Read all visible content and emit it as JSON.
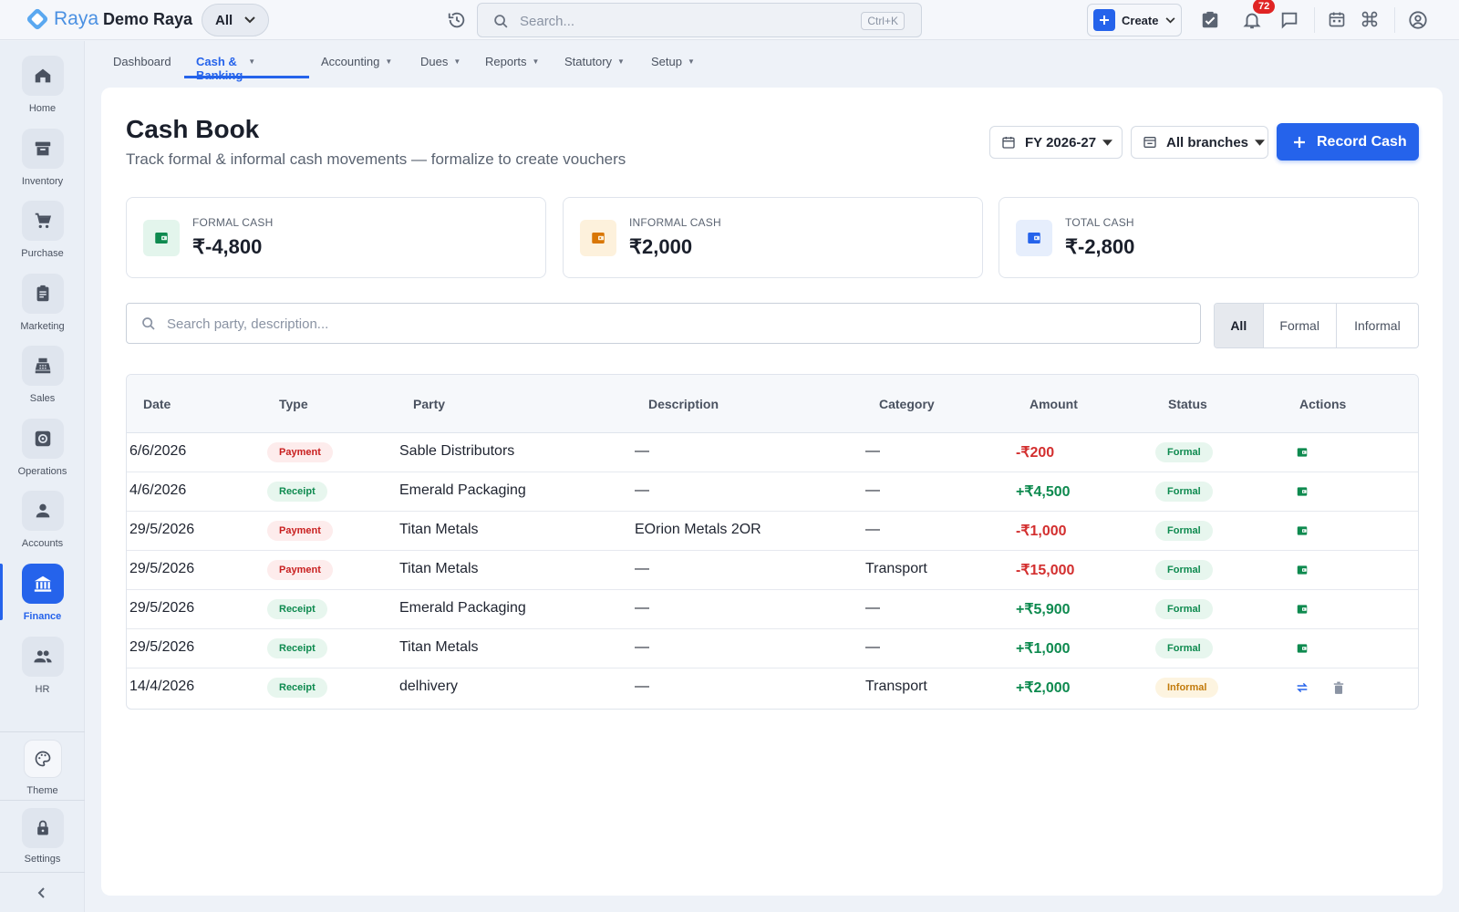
{
  "app": {
    "brand": "Raya",
    "org_name": "Demo Raya",
    "scope": "All"
  },
  "header": {
    "search_placeholder": "Search...",
    "search_shortcut": "Ctrl+K",
    "create_label": "Create",
    "notifications_count": "72"
  },
  "sidebar": {
    "items": [
      {
        "label": "Home",
        "icon": "home-icon"
      },
      {
        "label": "Inventory",
        "icon": "archive-icon"
      },
      {
        "label": "Purchase",
        "icon": "cart-icon"
      },
      {
        "label": "Marketing",
        "icon": "clipboard-icon"
      },
      {
        "label": "Sales",
        "icon": "register-icon"
      },
      {
        "label": "Operations",
        "icon": "gear-box-icon"
      },
      {
        "label": "Accounts",
        "icon": "person-icon"
      },
      {
        "label": "Finance",
        "icon": "bank-icon",
        "active": true
      },
      {
        "label": "HR",
        "icon": "people-icon"
      }
    ],
    "theme_label": "Theme",
    "settings_label": "Settings"
  },
  "tabs": [
    {
      "label": "Dashboard",
      "dropdown": false
    },
    {
      "label": "Cash & Banking",
      "dropdown": true,
      "active": true
    },
    {
      "label": "Accounting",
      "dropdown": true
    },
    {
      "label": "Dues",
      "dropdown": true
    },
    {
      "label": "Reports",
      "dropdown": true
    },
    {
      "label": "Statutory",
      "dropdown": true
    },
    {
      "label": "Setup",
      "dropdown": true
    }
  ],
  "page": {
    "title": "Cash Book",
    "subtitle": "Track formal & informal cash movements — formalize to create vouchers",
    "fy_label": "FY 2026-27",
    "branch_label": "All branches",
    "record_label": "Record Cash"
  },
  "stats": [
    {
      "label": "FORMAL CASH",
      "value": "₹-4,800",
      "color": "#0e8a4f",
      "bg": "#e3f5ec"
    },
    {
      "label": "INFORMAL CASH",
      "value": "₹2,000",
      "color": "#d97706",
      "bg": "#fdf1dc"
    },
    {
      "label": "TOTAL CASH",
      "value": "₹-2,800",
      "color": "#2563eb",
      "bg": "#e6eefc"
    }
  ],
  "table_search_placeholder": "Search party, description...",
  "filters": [
    "All",
    "Formal",
    "Informal"
  ],
  "table": {
    "columns": [
      "Date",
      "Type",
      "Party",
      "Description",
      "Category",
      "Amount",
      "Status",
      "Actions"
    ],
    "rows": [
      {
        "date": "6/6/2026",
        "type": "Payment",
        "party": "Sable Distributors",
        "description": "—",
        "category": "—",
        "amount": "-₹200",
        "status": "Formal"
      },
      {
        "date": "4/6/2026",
        "type": "Receipt",
        "party": "Emerald Packaging",
        "description": "—",
        "category": "—",
        "amount": "+₹4,500",
        "status": "Formal"
      },
      {
        "date": "29/5/2026",
        "type": "Payment",
        "party": "Titan Metals",
        "description": "EOrion Metals 2OR",
        "category": "—",
        "amount": "-₹1,000",
        "status": "Formal"
      },
      {
        "date": "29/5/2026",
        "type": "Payment",
        "party": "Titan Metals",
        "description": "—",
        "category": "Transport",
        "amount": "-₹15,000",
        "status": "Formal"
      },
      {
        "date": "29/5/2026",
        "type": "Receipt",
        "party": "Emerald Packaging",
        "description": "—",
        "category": "—",
        "amount": "+₹5,900",
        "status": "Formal"
      },
      {
        "date": "29/5/2026",
        "type": "Receipt",
        "party": "Titan Metals",
        "description": "—",
        "category": "—",
        "amount": "+₹1,000",
        "status": "Formal"
      },
      {
        "date": "14/4/2026",
        "type": "Receipt",
        "party": "delhivery",
        "description": "—",
        "category": "Transport",
        "amount": "+₹2,000",
        "status": "Informal"
      }
    ]
  },
  "colors": {
    "accent": "#2563eb",
    "positive": "#0e8a4f",
    "negative": "#d32f2f",
    "warning": "#d97706"
  }
}
